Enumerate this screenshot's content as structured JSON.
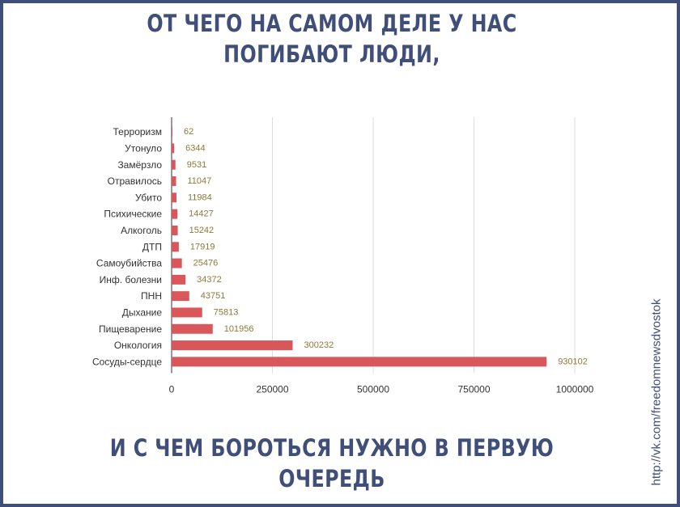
{
  "headline_top": "ОТ ЧЕГО НА САМОМ ДЕЛЕ У НАС ПОГИБАЮТ ЛЮДИ,",
  "headline_bottom": "И С ЧЕМ БОРОТЬСЯ НУЖНО В ПЕРВУЮ ОЧЕРЕДЬ",
  "watermark": "http://vk.com/freedomnewsdvostok",
  "colors": {
    "frame": "#3f4f7a",
    "bar": "#d9575b",
    "value_label": "#8a7a3a",
    "grid": "#dddddd"
  },
  "chart_data": {
    "type": "bar",
    "orientation": "horizontal",
    "categories": [
      "Терроризм",
      "Утонуло",
      "Замёрзло",
      "Отравилось",
      "Убито",
      "Психические",
      "Алкоголь",
      "ДТП",
      "Самоубийства",
      "Инф. болезни",
      "ПНН",
      "Дыхание",
      "Пищеварение",
      "Онкология",
      "Сосуды-сердце"
    ],
    "values": [
      62,
      6344,
      9531,
      11047,
      11984,
      14427,
      15242,
      17919,
      25476,
      34372,
      43751,
      75813,
      101956,
      300232,
      930102
    ],
    "value_labels": [
      "62",
      "6344",
      "9531",
      "11047",
      "11984",
      "14427",
      "15242",
      "17919",
      "25476",
      "34372",
      "43751",
      "75813",
      "101956",
      "300232",
      "930102"
    ],
    "xlim": [
      0,
      1000000
    ],
    "x_ticks": [
      0,
      250000,
      500000,
      750000,
      1000000
    ],
    "x_tick_labels": [
      "0",
      "250000",
      "500000",
      "750000",
      "1000000"
    ],
    "grid": true,
    "legend": false
  }
}
